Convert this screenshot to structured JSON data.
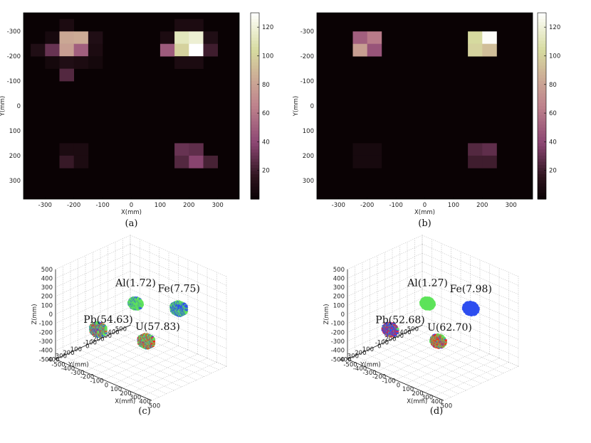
{
  "chart_data": [
    {
      "type": "heatmap",
      "caption": "(a)",
      "xlabel": "X(mm)",
      "ylabel": "Y(mm)",
      "x_ticks": [
        "-300",
        "-200",
        "-100",
        "0",
        "100",
        "200",
        "300"
      ],
      "y_ticks": [
        "-300",
        "-200",
        "-100",
        "0",
        "100",
        "200",
        "300"
      ],
      "colorbar_ticks": [
        "20",
        "40",
        "60",
        "80",
        "100",
        "120"
      ],
      "colorbar_range": [
        0,
        130
      ],
      "cell_size_mm": 50,
      "cells": [
        {
          "x": -225,
          "y": -325,
          "value": 8
        },
        {
          "x": -275,
          "y": -275,
          "value": 6
        },
        {
          "x": -225,
          "y": -275,
          "value": 82
        },
        {
          "x": -175,
          "y": -275,
          "value": 84
        },
        {
          "x": -125,
          "y": -275,
          "value": 10
        },
        {
          "x": -325,
          "y": -225,
          "value": 10
        },
        {
          "x": -275,
          "y": -225,
          "value": 30
        },
        {
          "x": -225,
          "y": -225,
          "value": 78
        },
        {
          "x": -175,
          "y": -225,
          "value": 50
        },
        {
          "x": -125,
          "y": -225,
          "value": 8
        },
        {
          "x": -275,
          "y": -175,
          "value": 5
        },
        {
          "x": -225,
          "y": -175,
          "value": 10
        },
        {
          "x": -175,
          "y": -175,
          "value": 8
        },
        {
          "x": -125,
          "y": -175,
          "value": 5
        },
        {
          "x": -225,
          "y": -125,
          "value": 25
        },
        {
          "x": 175,
          "y": -325,
          "value": 8
        },
        {
          "x": 225,
          "y": -325,
          "value": 8
        },
        {
          "x": 125,
          "y": -275,
          "value": 8
        },
        {
          "x": 175,
          "y": -275,
          "value": 112
        },
        {
          "x": 225,
          "y": -275,
          "value": 118
        },
        {
          "x": 275,
          "y": -275,
          "value": 10
        },
        {
          "x": 125,
          "y": -225,
          "value": 48
        },
        {
          "x": 175,
          "y": -225,
          "value": 100
        },
        {
          "x": 225,
          "y": -225,
          "value": 130
        },
        {
          "x": 275,
          "y": -225,
          "value": 20
        },
        {
          "x": 175,
          "y": -175,
          "value": 8
        },
        {
          "x": 225,
          "y": -175,
          "value": 8
        },
        {
          "x": -225,
          "y": 175,
          "value": 8
        },
        {
          "x": -175,
          "y": 175,
          "value": 8
        },
        {
          "x": -225,
          "y": 225,
          "value": 18
        },
        {
          "x": -175,
          "y": 225,
          "value": 8
        },
        {
          "x": 175,
          "y": 175,
          "value": 30
        },
        {
          "x": 225,
          "y": 175,
          "value": 28
        },
        {
          "x": 175,
          "y": 225,
          "value": 25
        },
        {
          "x": 225,
          "y": 225,
          "value": 38
        },
        {
          "x": 275,
          "y": 225,
          "value": 22
        }
      ]
    },
    {
      "type": "heatmap",
      "caption": "(b)",
      "xlabel": "X(mm)",
      "ylabel": "Y(mm)",
      "x_ticks": [
        "-300",
        "-200",
        "-100",
        "0",
        "100",
        "200",
        "300"
      ],
      "y_ticks": [
        "-300",
        "-200",
        "-100",
        "0",
        "100",
        "200",
        "300"
      ],
      "colorbar_ticks": [
        "20",
        "40",
        "60",
        "80",
        "100",
        "120"
      ],
      "colorbar_range": [
        0,
        130
      ],
      "cell_size_mm": 50,
      "cells": [
        {
          "x": -225,
          "y": -275,
          "value": 50
        },
        {
          "x": -175,
          "y": -275,
          "value": 62
        },
        {
          "x": -225,
          "y": -225,
          "value": 78
        },
        {
          "x": -175,
          "y": -225,
          "value": 45
        },
        {
          "x": 175,
          "y": -275,
          "value": 103
        },
        {
          "x": 225,
          "y": -275,
          "value": 128
        },
        {
          "x": 175,
          "y": -225,
          "value": 100
        },
        {
          "x": 225,
          "y": -225,
          "value": 92
        },
        {
          "x": -225,
          "y": 175,
          "value": 6
        },
        {
          "x": -175,
          "y": 175,
          "value": 6
        },
        {
          "x": -225,
          "y": 225,
          "value": 6
        },
        {
          "x": -175,
          "y": 225,
          "value": 6
        },
        {
          "x": 175,
          "y": 175,
          "value": 25
        },
        {
          "x": 225,
          "y": 175,
          "value": 28
        },
        {
          "x": 175,
          "y": 225,
          "value": 20
        },
        {
          "x": 225,
          "y": 225,
          "value": 20
        }
      ]
    },
    {
      "type": "scatter",
      "caption": "(c)",
      "xlabel": "X(mm)",
      "ylabel": "Y(mm)",
      "zlabel": "Z(mm)",
      "axis_range": [
        -500,
        500
      ],
      "z_ticks": [
        "500",
        "400",
        "300",
        "200",
        "100",
        "0",
        "-100",
        "-200",
        "-300",
        "-400",
        "-500"
      ],
      "x_ticks": [
        "-500",
        "-400",
        "-300",
        "-200",
        "-100",
        "0",
        "100",
        "200",
        "300",
        "400",
        "500"
      ],
      "y_ticks": [
        "400",
        "300",
        "200",
        "100",
        "0",
        "-100",
        "-200",
        "-300",
        "-400",
        "-500"
      ],
      "objects": [
        {
          "label": "Al(1.72)",
          "x": -250,
          "y": -250,
          "z": -50,
          "half": 50,
          "blue": 0.2,
          "red": 0.0,
          "blue_core": false
        },
        {
          "label": "Fe(7.75)",
          "x": 200,
          "y": -250,
          "z": 100,
          "half": 60,
          "blue": 0.45,
          "red": 0.0,
          "blue_core": true
        },
        {
          "label": "U(57.83)",
          "x": 250,
          "y": 250,
          "z": -50,
          "half": 60,
          "blue": 0.15,
          "red": 0.3,
          "blue_core": false
        },
        {
          "label": "Pb(54.63)",
          "x": -250,
          "y": 250,
          "z": -150,
          "half": 60,
          "blue": 0.3,
          "red": 0.25,
          "blue_core": false
        }
      ]
    },
    {
      "type": "scatter",
      "caption": "(d)",
      "xlabel": "X(mm)",
      "ylabel": "Y(mm)",
      "zlabel": "Z(mm)",
      "axis_range": [
        -500,
        500
      ],
      "z_ticks": [
        "500",
        "400",
        "300",
        "200",
        "100",
        "0",
        "-100",
        "-200",
        "-300",
        "-400",
        "-500"
      ],
      "x_ticks": [
        "-500",
        "-400",
        "-300",
        "-200",
        "-100",
        "0",
        "100",
        "200",
        "300",
        "400",
        "500"
      ],
      "y_ticks": [
        "400",
        "300",
        "200",
        "100",
        "0",
        "-100",
        "-200",
        "-300",
        "-400",
        "-500"
      ],
      "objects": [
        {
          "label": "Al(1.27)",
          "x": -250,
          "y": -250,
          "z": -50,
          "half": 50,
          "blue": 0.0,
          "red": 0.0,
          "blue_core": false
        },
        {
          "label": "Fe(7.98)",
          "x": 200,
          "y": -250,
          "z": 100,
          "half": 55,
          "blue": 1.0,
          "red": 0.0,
          "blue_core": false
        },
        {
          "label": "U(62.70)",
          "x": 250,
          "y": 250,
          "z": -50,
          "half": 55,
          "blue": 0.1,
          "red": 0.45,
          "blue_core": false
        },
        {
          "label": "Pb(52.68)",
          "x": -250,
          "y": 250,
          "z": -150,
          "half": 55,
          "blue": 0.6,
          "red": 0.3,
          "blue_core": false
        }
      ]
    }
  ]
}
